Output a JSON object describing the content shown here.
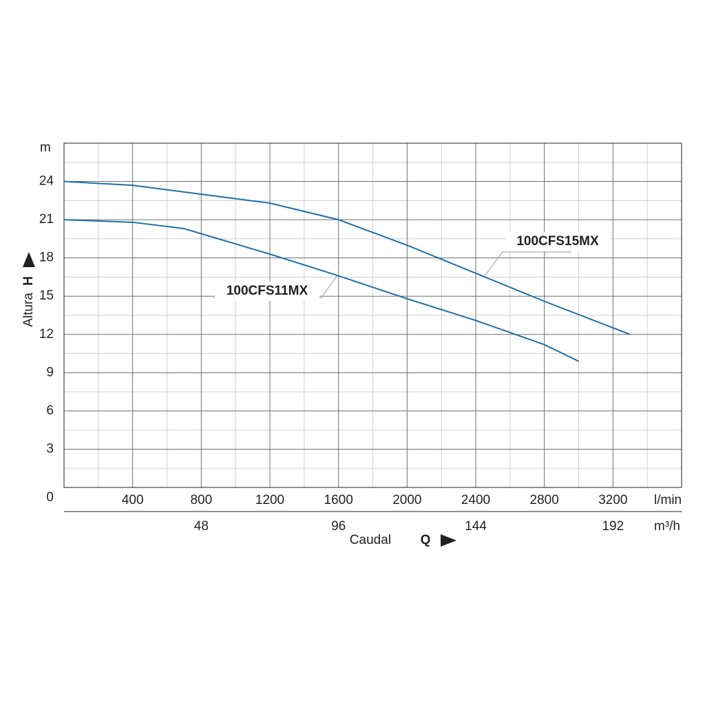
{
  "chart_data": {
    "type": "line",
    "x_label": "Caudal",
    "x_symbol": "Q",
    "y_label": "Altura",
    "y_symbol": "H",
    "y_unit": "m",
    "x_unit": "l/min",
    "x2_unit": "m³/h",
    "xlim": [
      0,
      3600
    ],
    "xticks": [
      400,
      800,
      1200,
      1600,
      2000,
      2400,
      2800,
      3200
    ],
    "x_minor_ticks": [
      200,
      600,
      1000,
      1400,
      1800,
      2200,
      2600,
      3000,
      3400
    ],
    "x2lim": [
      0,
      216
    ],
    "x2ticks": [
      48,
      96,
      144,
      192
    ],
    "ylim": [
      0,
      27
    ],
    "yticks": [
      0,
      3,
      6,
      9,
      12,
      15,
      18,
      21,
      24
    ],
    "y_minor_ticks": [
      1.5,
      4.5,
      7.5,
      10.5,
      13.5,
      16.5,
      19.5,
      22.5,
      25.5
    ],
    "grid": true,
    "series": [
      {
        "name": "100CFS15MX",
        "color": "#1f6ea8",
        "x": [
          0,
          400,
          800,
          1200,
          1600,
          2000,
          2400,
          2800,
          3300
        ],
        "values": [
          24,
          23.7,
          23.0,
          22.3,
          21.0,
          19.0,
          16.8,
          14.6,
          12
        ]
      },
      {
        "name": "100CFS11MX",
        "color": "#1f6ea8",
        "x": [
          0,
          400,
          700,
          800,
          1200,
          1600,
          2000,
          2400,
          2800,
          3000
        ],
        "values": [
          21,
          20.8,
          20.3,
          19.9,
          18.3,
          16.6,
          14.8,
          13.1,
          11.2,
          9.9
        ]
      }
    ]
  }
}
